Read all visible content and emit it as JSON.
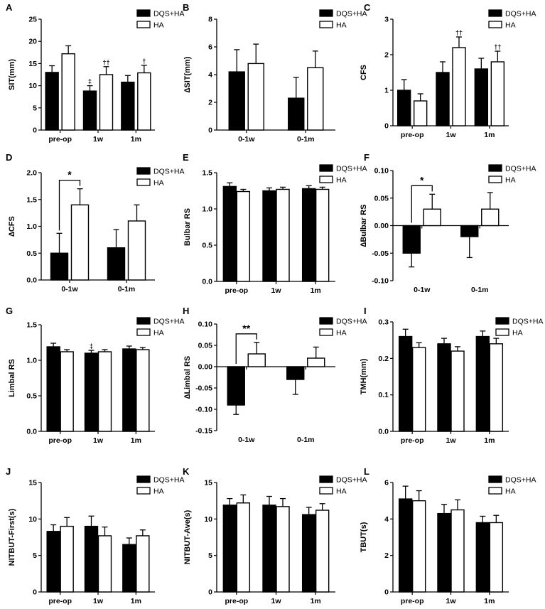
{
  "figure": {
    "legend_labels": [
      "DQS+HA",
      "HA"
    ],
    "colors": {
      "dqs": "#000000",
      "ha": "#ffffff",
      "axis": "#000000"
    }
  },
  "chart_data": [
    {
      "panel": "A",
      "type": "bar",
      "ylabel": "SIT(mm)",
      "ylim": [
        0,
        25
      ],
      "yticks": [
        0,
        5,
        10,
        15,
        20,
        25
      ],
      "categories": [
        "pre-op",
        "1w",
        "1m"
      ],
      "series": [
        {
          "name": "DQS+HA",
          "values": [
            13.0,
            8.8,
            10.8
          ],
          "errors": [
            1.5,
            1.2,
            1.5
          ],
          "marks": [
            "",
            "‡",
            ""
          ]
        },
        {
          "name": "HA",
          "values": [
            17.2,
            12.5,
            12.9
          ],
          "errors": [
            1.8,
            1.8,
            1.7
          ],
          "marks": [
            "",
            "††",
            "†"
          ]
        }
      ],
      "legend": "top-right"
    },
    {
      "panel": "B",
      "type": "bar",
      "ylabel": "∆SIT(mm)",
      "ylim": [
        0,
        8
      ],
      "yticks": [
        0,
        2,
        4,
        6,
        8
      ],
      "categories": [
        "0-1w",
        "0-1m"
      ],
      "series": [
        {
          "name": "DQS+HA",
          "values": [
            4.2,
            2.3
          ],
          "errors": [
            1.6,
            1.5
          ]
        },
        {
          "name": "HA",
          "values": [
            4.8,
            4.5
          ],
          "errors": [
            1.4,
            1.2
          ]
        }
      ],
      "legend": "top-right"
    },
    {
      "panel": "C",
      "type": "bar",
      "ylabel": "CFS",
      "ylim": [
        0,
        3
      ],
      "yticks": [
        0,
        1,
        2,
        3
      ],
      "categories": [
        "pre-op",
        "1w",
        "1m"
      ],
      "series": [
        {
          "name": "DQS+HA",
          "values": [
            1.0,
            1.5,
            1.6
          ],
          "errors": [
            0.3,
            0.3,
            0.3
          ]
        },
        {
          "name": "HA",
          "values": [
            0.7,
            2.2,
            1.8
          ],
          "errors": [
            0.2,
            0.3,
            0.3
          ],
          "marks": [
            "",
            "††",
            "††"
          ]
        }
      ],
      "legend": "top-right"
    },
    {
      "panel": "D",
      "type": "bar",
      "ylabel": "∆CFS",
      "ylim": [
        0,
        2.0
      ],
      "yticks": [
        0,
        0.5,
        1.0,
        1.5,
        2.0
      ],
      "categories": [
        "0-1w",
        "0-1m"
      ],
      "series": [
        {
          "name": "DQS+HA",
          "values": [
            0.5,
            0.6
          ],
          "errors": [
            0.37,
            0.34
          ]
        },
        {
          "name": "HA",
          "values": [
            1.4,
            1.1
          ],
          "errors": [
            0.3,
            0.3
          ]
        }
      ],
      "sig": [
        {
          "cat": 0,
          "text": "*"
        }
      ],
      "legend": "top-right"
    },
    {
      "panel": "E",
      "type": "bar",
      "ylabel": "Bulbar RS",
      "ylim": [
        0,
        1.5
      ],
      "yticks": [
        0,
        0.5,
        1.0,
        1.5
      ],
      "categories": [
        "pre-op",
        "1w",
        "1m"
      ],
      "series": [
        {
          "name": "DQS+HA",
          "values": [
            1.31,
            1.25,
            1.28
          ],
          "errors": [
            0.05,
            0.04,
            0.04
          ]
        },
        {
          "name": "HA",
          "values": [
            1.24,
            1.27,
            1.27
          ],
          "errors": [
            0.03,
            0.03,
            0.03
          ]
        }
      ],
      "legend": "top-right"
    },
    {
      "panel": "F",
      "type": "bar",
      "ylabel": "∆Bulbar RS",
      "ylim": [
        -0.1,
        0.1
      ],
      "yticks": [
        -0.1,
        -0.05,
        0,
        0.05,
        0.1
      ],
      "categories": [
        "0-1w",
        "0-1m"
      ],
      "series": [
        {
          "name": "DQS+HA",
          "values": [
            -0.05,
            -0.02
          ],
          "errors": [
            0.025,
            0.038
          ]
        },
        {
          "name": "HA",
          "values": [
            0.03,
            0.03
          ],
          "errors": [
            0.027,
            0.03
          ]
        }
      ],
      "sig": [
        {
          "cat": 0,
          "text": "*"
        }
      ],
      "legend": "top-right"
    },
    {
      "panel": "G",
      "type": "bar",
      "ylabel": "Limbal RS",
      "ylim": [
        0,
        1.5
      ],
      "yticks": [
        0,
        0.5,
        1.0,
        1.5
      ],
      "categories": [
        "pre-op",
        "1w",
        "1m"
      ],
      "series": [
        {
          "name": "DQS+HA",
          "values": [
            1.19,
            1.1,
            1.16
          ],
          "errors": [
            0.05,
            0.04,
            0.04
          ]
        },
        {
          "name": "HA",
          "values": [
            1.12,
            1.12,
            1.15
          ],
          "errors": [
            0.03,
            0.03,
            0.03
          ]
        }
      ],
      "marks_dqs": [
        "",
        "‡",
        ""
      ],
      "legend": "top-right"
    },
    {
      "panel": "H",
      "type": "bar",
      "ylabel": "∆Limbal RS",
      "ylim": [
        -0.15,
        0.1
      ],
      "yticks": [
        -0.15,
        -0.1,
        -0.05,
        0,
        0.05,
        0.1
      ],
      "categories": [
        "0-1w",
        "0-1m"
      ],
      "series": [
        {
          "name": "DQS+HA",
          "values": [
            -0.09,
            -0.03
          ],
          "errors": [
            0.022,
            0.035
          ]
        },
        {
          "name": "HA",
          "values": [
            0.03,
            0.02
          ],
          "errors": [
            0.027,
            0.026
          ]
        }
      ],
      "sig": [
        {
          "cat": 0,
          "text": "**"
        }
      ],
      "legend": "top-right"
    },
    {
      "panel": "I",
      "type": "bar",
      "ylabel": "TMH(mm)",
      "ylim": [
        0,
        0.3
      ],
      "yticks": [
        0,
        0.1,
        0.2,
        0.3
      ],
      "categories": [
        "pre-op",
        "1w",
        "1m"
      ],
      "series": [
        {
          "name": "DQS+HA",
          "values": [
            0.26,
            0.24,
            0.26
          ],
          "errors": [
            0.02,
            0.015,
            0.015
          ]
        },
        {
          "name": "HA",
          "values": [
            0.23,
            0.22,
            0.24
          ],
          "errors": [
            0.013,
            0.012,
            0.015
          ]
        }
      ],
      "legend": "top-right"
    },
    {
      "panel": "J",
      "type": "bar",
      "ylabel": "NITBUT-First(s)",
      "ylim": [
        0,
        15
      ],
      "yticks": [
        0,
        5,
        10,
        15
      ],
      "categories": [
        "pre-op",
        "1w",
        "1m"
      ],
      "series": [
        {
          "name": "DQS+HA",
          "values": [
            8.3,
            9.0,
            6.5
          ],
          "errors": [
            0.9,
            1.4,
            0.9
          ]
        },
        {
          "name": "HA",
          "values": [
            9.0,
            7.7,
            7.7
          ],
          "errors": [
            1.2,
            1.2,
            0.8
          ]
        }
      ],
      "legend": "top-right"
    },
    {
      "panel": "K",
      "type": "bar",
      "ylabel": "NITBUT-Ave(s)",
      "ylim": [
        0,
        15
      ],
      "yticks": [
        0,
        5,
        10,
        15
      ],
      "categories": [
        "pre-op",
        "1w",
        "1m"
      ],
      "series": [
        {
          "name": "DQS+HA",
          "values": [
            11.9,
            11.9,
            10.6
          ],
          "errors": [
            0.9,
            1.2,
            1.0
          ]
        },
        {
          "name": "HA",
          "values": [
            12.2,
            11.7,
            11.2
          ],
          "errors": [
            1.1,
            1.1,
            0.9
          ]
        }
      ],
      "legend": "top-right"
    },
    {
      "panel": "L",
      "type": "bar",
      "ylabel": "TBUT(s)",
      "ylim": [
        0,
        6
      ],
      "yticks": [
        0,
        2,
        4,
        6
      ],
      "categories": [
        "pre-op",
        "1w",
        "1m"
      ],
      "series": [
        {
          "name": "DQS+HA",
          "values": [
            5.1,
            4.3,
            3.8
          ],
          "errors": [
            0.7,
            0.5,
            0.35
          ]
        },
        {
          "name": "HA",
          "values": [
            5.0,
            4.5,
            3.8
          ],
          "errors": [
            0.55,
            0.55,
            0.4
          ]
        }
      ],
      "legend": "top-right"
    }
  ]
}
